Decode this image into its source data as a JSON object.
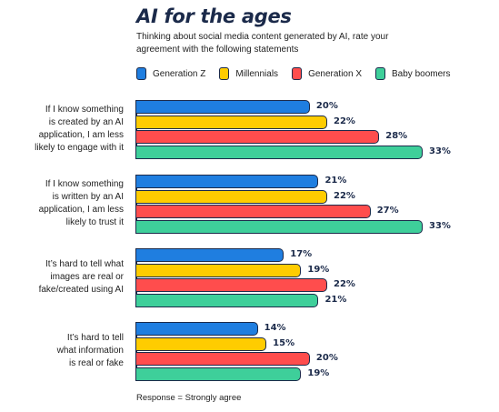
{
  "chart_data": {
    "type": "bar",
    "orientation": "horizontal",
    "title": "AI for the ages",
    "subtitle": "Thinking about social media content generated by AI, rate your agreement with the following statements",
    "categories": [
      "If I know something is created by an AI application, I am less likely to engage with it",
      "If I know something is written by an AI application, I am less likely to trust it",
      "It's hard to tell what images are real or fake/created using AI",
      "It's hard to tell what information is real or fake"
    ],
    "series": [
      {
        "name": "Generation Z",
        "color": "#1f7ee0",
        "values": [
          20,
          21,
          17,
          14
        ]
      },
      {
        "name": "Millennials",
        "color": "#ffcc00",
        "values": [
          22,
          22,
          19,
          15
        ]
      },
      {
        "name": "Generation X",
        "color": "#ff4d4d",
        "values": [
          28,
          27,
          22,
          20
        ]
      },
      {
        "name": "Baby boomers",
        "color": "#3ecf9a",
        "values": [
          33,
          33,
          21,
          19
        ]
      }
    ],
    "value_suffix": "%",
    "xlim": [
      0,
      33
    ],
    "grid": false,
    "legend_position": "top",
    "note": "Response = Strongly agree"
  }
}
